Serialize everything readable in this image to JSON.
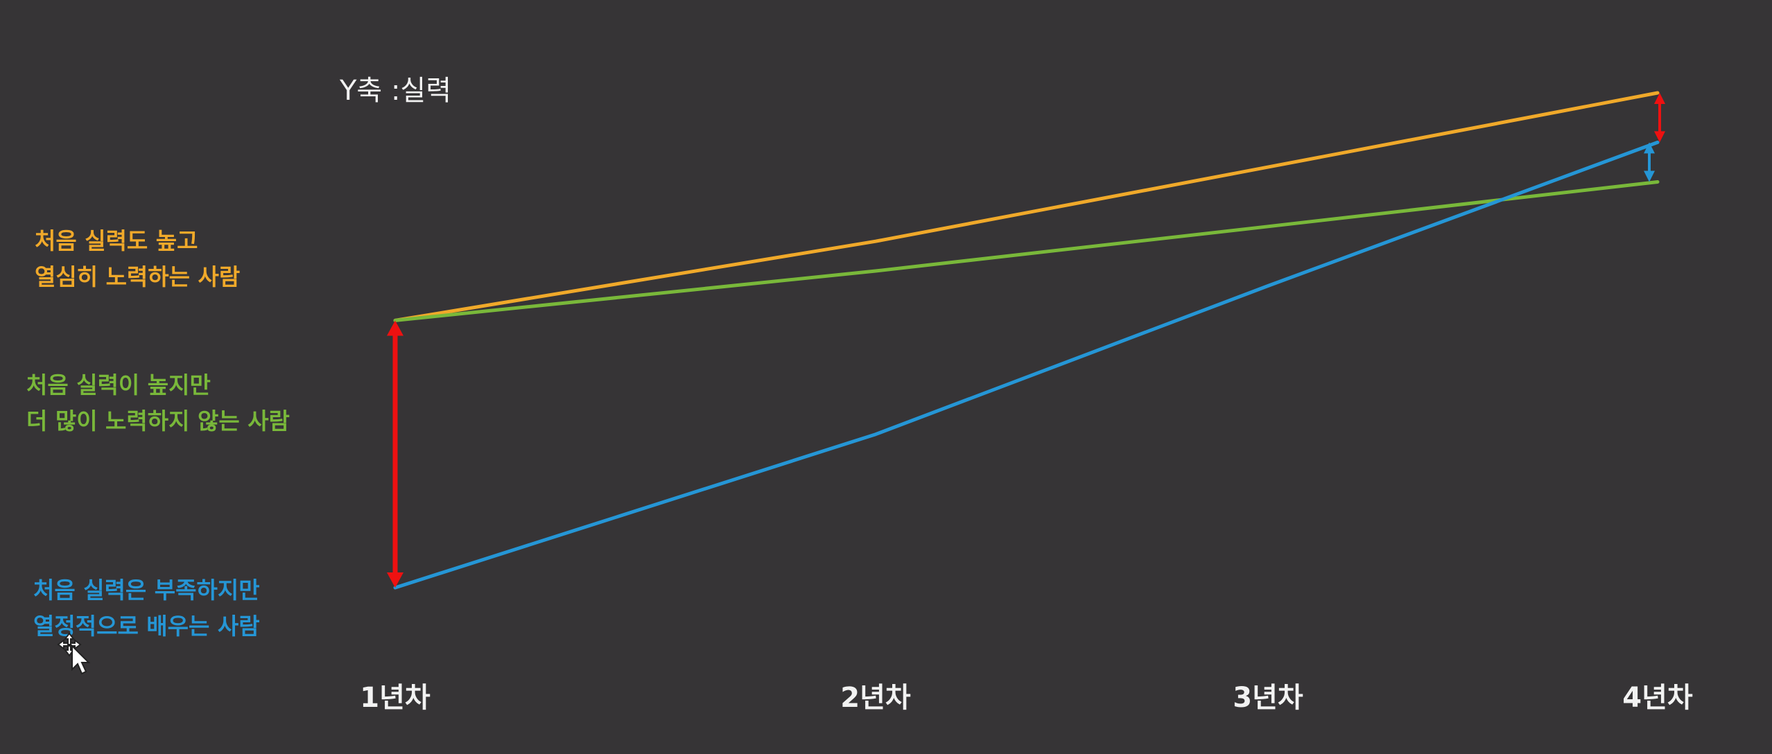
{
  "ylabel": "Y축 :실력",
  "legend": [
    {
      "line1": "처음 실력도 높고",
      "line2": "열심히 노력하는 사람"
    },
    {
      "line1": "처음 실력이 높지만",
      "line2": "더 많이 노력하지 않는 사람"
    },
    {
      "line1": "처음 실력은 부족하지만",
      "line2": "열정적으로 배우는 사람"
    }
  ],
  "chart_data": {
    "type": "line",
    "x": [
      "1년차",
      "2년차",
      "3년차",
      "4년차"
    ],
    "ylabel": "Y축 :실력",
    "ylim": [
      0,
      100
    ],
    "grid": false,
    "series": [
      {
        "name": "처음 실력도 높고 열심히 노력하는 사람",
        "color": "#f0a92a",
        "values": [
          54,
          70,
          85,
          100
        ]
      },
      {
        "name": "처음 실력이 높지만 더 많이 노력하지 않는 사람",
        "color": "#79b83a",
        "values": [
          54,
          64,
          73,
          82
        ]
      },
      {
        "name": "처음 실력은 부족하지만 열정적으로 배우는 사람",
        "color": "#2596d6",
        "values": [
          0,
          31,
          61,
          90
        ]
      }
    ],
    "annotations": [
      {
        "type": "double-arrow",
        "color": "#ee1111",
        "x": "1년차",
        "from": 0,
        "to": 54
      },
      {
        "type": "double-arrow",
        "color": "#ee1111",
        "x": "4년차",
        "from": 90,
        "to": 100
      },
      {
        "type": "double-arrow",
        "color": "#2596d6",
        "x": "4년차",
        "from": 82,
        "to": 90
      }
    ]
  }
}
